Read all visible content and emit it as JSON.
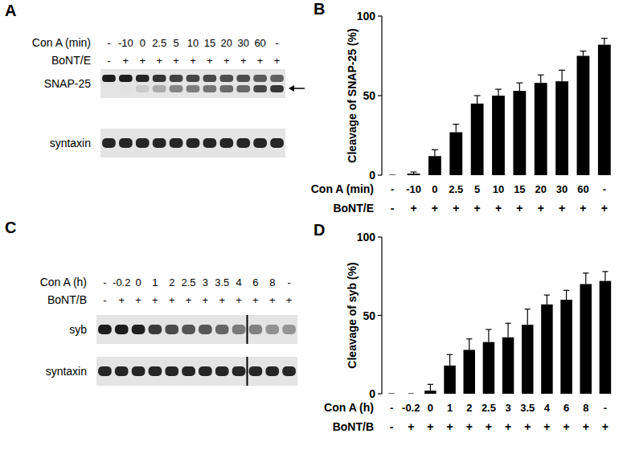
{
  "chart_data": [
    {
      "type": "bar",
      "title": "B",
      "y_label": "Cleavage of SNAP-25 (%)",
      "x_label": "Con A (min)",
      "categories": [
        "-",
        "-10",
        "0",
        "2.5",
        "5",
        "10",
        "15",
        "20",
        "30",
        "60",
        "-"
      ],
      "treatment": {
        "label": "BoNT/E",
        "values": [
          "-",
          "+",
          "+",
          "+",
          "+",
          "+",
          "+",
          "+",
          "+",
          "+",
          "+"
        ]
      },
      "values": [
        0,
        1,
        12,
        27,
        45,
        50,
        53,
        58,
        59,
        75,
        82
      ],
      "errors": [
        0,
        1,
        4,
        5,
        5,
        4,
        5,
        5,
        7,
        3,
        4
      ],
      "color": "#000000",
      "ylim": [
        0,
        100
      ],
      "yticks": [
        0,
        50,
        100
      ]
    },
    {
      "type": "bar",
      "title": "D",
      "y_label": "Cleavage of syb (%)",
      "x_label": "Con A (h)",
      "categories": [
        "-",
        "-0.2",
        "0",
        "1",
        "2",
        "2.5",
        "3",
        "3.5",
        "4",
        "6",
        "8",
        "-"
      ],
      "treatment": {
        "label": "BoNT/B",
        "values": [
          "-",
          "+",
          "+",
          "+",
          "+",
          "+",
          "+",
          "+",
          "+",
          "+",
          "+",
          "+"
        ]
      },
      "values": [
        0,
        0,
        2,
        18,
        28,
        33,
        36,
        44,
        57,
        60,
        70,
        72
      ],
      "errors": [
        0,
        0,
        4,
        7,
        7,
        8,
        9,
        10,
        6,
        6,
        7,
        6
      ],
      "color": "#000000",
      "ylim": [
        0,
        100
      ],
      "yticks": [
        0,
        50,
        100
      ]
    }
  ],
  "blots": [
    {
      "label": "A",
      "rows": [
        {
          "label": "Con A (min)",
          "values": [
            "-",
            "-10",
            "0",
            "2.5",
            "5",
            "10",
            "15",
            "20",
            "30",
            "60",
            "-"
          ]
        },
        {
          "label": "BoNT/E",
          "values": [
            "-",
            "+",
            "+",
            "+",
            "+",
            "+",
            "+",
            "+",
            "+",
            "+",
            "+"
          ]
        }
      ],
      "bands": [
        "SNAP-25",
        "syntaxin"
      ]
    },
    {
      "label": "C",
      "rows": [
        {
          "label": "Con A (h)",
          "values": [
            "-",
            "-0.2",
            "0",
            "1",
            "2",
            "2.5",
            "3",
            "3.5",
            "4",
            "6",
            "8",
            "-"
          ]
        },
        {
          "label": "BoNT/B",
          "values": [
            "-",
            "+",
            "+",
            "+",
            "+",
            "+",
            "+",
            "+",
            "+",
            "+",
            "+",
            "+"
          ]
        }
      ],
      "bands": [
        "syb",
        "syntaxin"
      ]
    }
  ]
}
